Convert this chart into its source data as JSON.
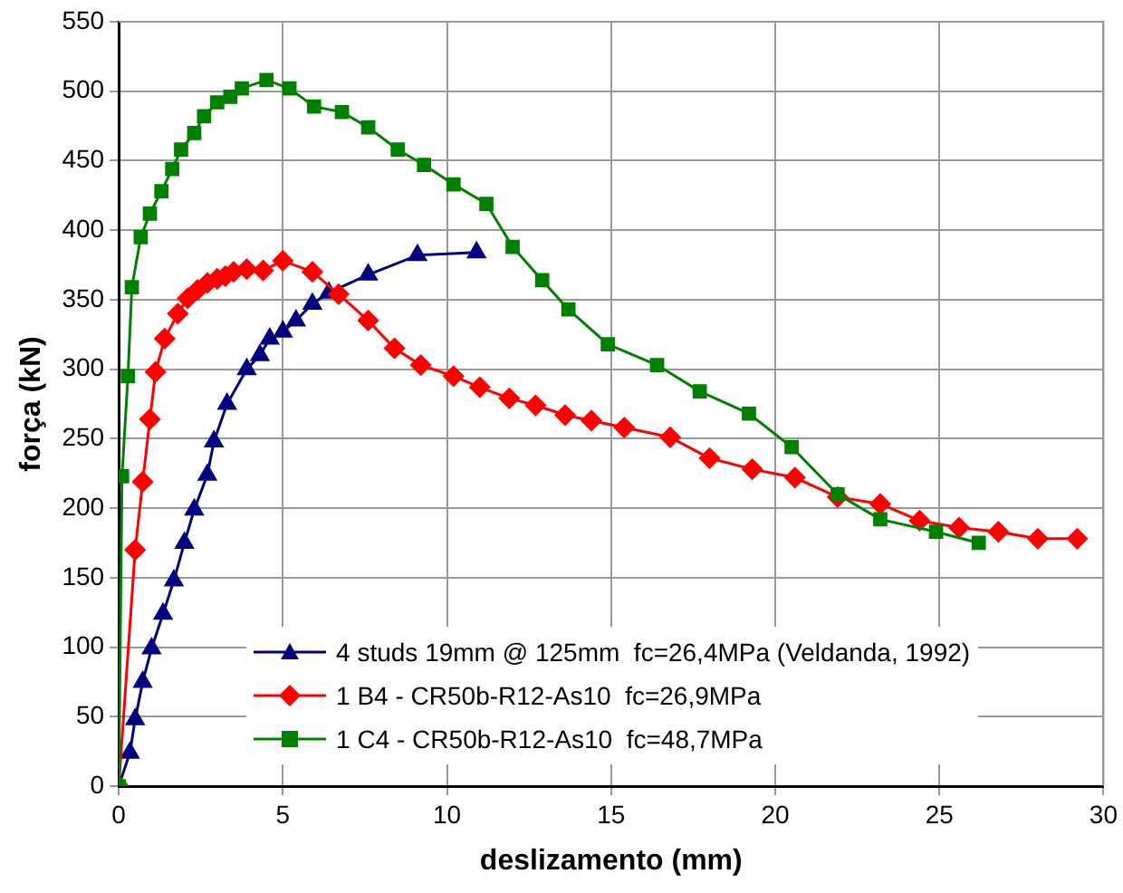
{
  "chart_data": {
    "type": "line",
    "xlabel": "deslizamento (mm)",
    "ylabel": "força (kN)",
    "xlim": [
      0,
      30
    ],
    "xticks": [
      0,
      5,
      10,
      15,
      20,
      25,
      30
    ],
    "ylim": [
      0,
      550
    ],
    "yticks": [
      0,
      50,
      100,
      150,
      200,
      250,
      300,
      350,
      400,
      450,
      500,
      550
    ],
    "grid": true,
    "legend": "bottom",
    "series": [
      {
        "name": "4 studs 19mm @ 125mm  fc=26,4MPa (Veldanda, 1992)",
        "color": "#000080",
        "marker": "triangle",
        "x": [
          0,
          0.34,
          0.5,
          0.73,
          1.0,
          1.35,
          1.68,
          2.0,
          2.3,
          2.7,
          2.9,
          3.3,
          3.9,
          4.3,
          4.6,
          5.0,
          5.4,
          5.9,
          6.4,
          7.6,
          9.1,
          10.9
        ],
        "values": [
          0,
          24,
          48,
          75,
          99,
          124,
          148,
          175,
          199,
          224,
          248,
          275,
          300,
          310,
          322,
          327,
          335,
          347,
          355,
          368,
          382,
          384
        ]
      },
      {
        "name": "1 B4 - CR50b-R12-As10  fc=26,9MPa",
        "color": "#ff0000",
        "marker": "diamond",
        "x": [
          0,
          0.5,
          0.73,
          0.95,
          1.12,
          1.4,
          1.8,
          2.1,
          2.4,
          2.7,
          3.0,
          3.25,
          3.5,
          3.9,
          4.4,
          5.0,
          5.9,
          6.7,
          7.6,
          8.4,
          9.2,
          10.2,
          11.0,
          11.9,
          12.7,
          13.6,
          14.4,
          15.4,
          16.8,
          18.0,
          19.3,
          20.6,
          21.9,
          23.2,
          24.4,
          25.6,
          26.8,
          28.0,
          29.2
        ],
        "values": [
          0,
          170,
          219,
          264,
          298,
          322,
          340,
          351,
          357,
          362,
          365,
          367,
          370,
          372,
          371,
          378,
          370,
          354,
          335,
          315,
          303,
          295,
          287,
          279,
          274,
          267,
          263,
          258,
          251,
          236,
          228,
          222,
          208,
          203,
          191,
          186,
          183,
          178,
          178
        ]
      },
      {
        "name": "1 C4 - CR50b-R12-As10  fc=48,7MPa",
        "color": "#008000",
        "marker": "square",
        "x": [
          0,
          0.1,
          0.28,
          0.4,
          0.67,
          0.95,
          1.3,
          1.63,
          1.9,
          2.3,
          2.6,
          3.0,
          3.4,
          3.75,
          4.5,
          5.2,
          5.95,
          6.8,
          7.6,
          8.5,
          9.3,
          10.2,
          11.2,
          12.0,
          12.9,
          13.7,
          14.9,
          16.4,
          17.7,
          19.2,
          20.5,
          21.9,
          23.2,
          24.9,
          26.2
        ],
        "values": [
          0,
          223,
          295,
          359,
          395,
          412,
          428,
          444,
          458,
          470,
          482,
          492,
          496,
          502,
          508,
          502,
          489,
          485,
          474,
          458,
          447,
          433,
          419,
          388,
          364,
          343,
          318,
          303,
          284,
          268,
          244,
          210,
          192,
          183,
          175
        ]
      }
    ]
  }
}
